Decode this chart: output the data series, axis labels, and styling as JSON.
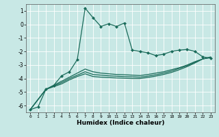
{
  "title": "",
  "xlabel": "Humidex (Indice chaleur)",
  "ylabel": "",
  "background_color": "#c8e8e5",
  "grid_color": "#ffffff",
  "line_color": "#1a6b5a",
  "xlim": [
    -0.5,
    23.5
  ],
  "ylim": [
    -6.5,
    1.5
  ],
  "yticks": [
    1,
    0,
    -1,
    -2,
    -3,
    -4,
    -5,
    -6
  ],
  "xticks": [
    0,
    1,
    2,
    3,
    4,
    5,
    6,
    7,
    8,
    9,
    10,
    11,
    12,
    13,
    14,
    15,
    16,
    17,
    18,
    19,
    20,
    21,
    22,
    23
  ],
  "series": [
    {
      "x": [
        0,
        1,
        2,
        3,
        4,
        5,
        6,
        7,
        8,
        9,
        10,
        11,
        12,
        13,
        14,
        15,
        16,
        17,
        18,
        19,
        20,
        21,
        22,
        23
      ],
      "y": [
        -6.3,
        -6.1,
        -4.8,
        -4.5,
        -3.8,
        -3.5,
        -2.6,
        1.2,
        0.5,
        -0.15,
        0.05,
        -0.15,
        0.1,
        -1.9,
        -2.0,
        -2.1,
        -2.3,
        -2.2,
        -2.0,
        -1.9,
        -1.85,
        -2.0,
        -2.4,
        -2.5
      ],
      "marker": "D",
      "markersize": 2.0,
      "linewidth": 0.9
    },
    {
      "x": [
        0,
        2,
        3,
        4,
        5,
        6,
        7,
        8,
        9,
        10,
        11,
        12,
        13,
        14,
        15,
        16,
        17,
        18,
        19,
        20,
        21,
        22,
        23
      ],
      "y": [
        -6.3,
        -4.8,
        -4.5,
        -4.2,
        -3.9,
        -3.6,
        -3.3,
        -3.5,
        -3.6,
        -3.65,
        -3.7,
        -3.72,
        -3.75,
        -3.78,
        -3.7,
        -3.6,
        -3.5,
        -3.35,
        -3.2,
        -3.0,
        -2.75,
        -2.55,
        -2.4
      ],
      "marker": null,
      "markersize": 0,
      "linewidth": 0.9
    },
    {
      "x": [
        0,
        2,
        3,
        4,
        5,
        6,
        7,
        8,
        9,
        10,
        11,
        12,
        13,
        14,
        15,
        16,
        17,
        18,
        19,
        20,
        21,
        22,
        23
      ],
      "y": [
        -6.3,
        -4.8,
        -4.55,
        -4.3,
        -4.0,
        -3.75,
        -3.5,
        -3.7,
        -3.75,
        -3.8,
        -3.83,
        -3.86,
        -3.88,
        -3.9,
        -3.82,
        -3.72,
        -3.6,
        -3.45,
        -3.25,
        -3.05,
        -2.8,
        -2.55,
        -2.45
      ],
      "marker": null,
      "markersize": 0,
      "linewidth": 0.9
    },
    {
      "x": [
        0,
        2,
        3,
        4,
        5,
        6,
        7,
        8,
        9,
        10,
        11,
        12,
        13,
        14,
        15,
        16,
        17,
        18,
        19,
        20,
        21,
        22,
        23
      ],
      "y": [
        -6.3,
        -4.8,
        -4.6,
        -4.4,
        -4.1,
        -3.85,
        -3.65,
        -3.85,
        -3.9,
        -3.93,
        -3.96,
        -3.98,
        -4.0,
        -4.0,
        -3.92,
        -3.82,
        -3.7,
        -3.55,
        -3.35,
        -3.12,
        -2.85,
        -2.55,
        -2.45
      ],
      "marker": null,
      "markersize": 0,
      "linewidth": 0.9
    }
  ]
}
